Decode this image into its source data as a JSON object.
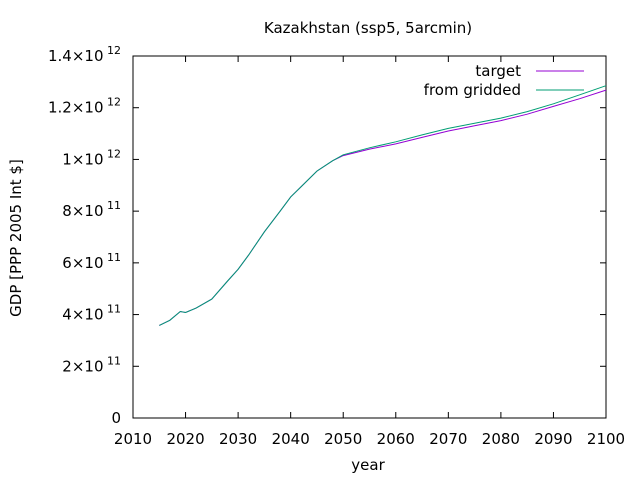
{
  "chart_data": {
    "type": "line",
    "title": "Kazakhstan (ssp5, 5arcmin)",
    "xlabel": "year",
    "ylabel": "GDP [PPP 2005 Int $]",
    "xlim": [
      2010,
      2100
    ],
    "ylim": [
      0,
      1400000000000
    ],
    "x_ticks": [
      2010,
      2020,
      2030,
      2040,
      2050,
      2060,
      2070,
      2080,
      2090,
      2100
    ],
    "y_ticks": [
      {
        "value": 0,
        "mant": "0",
        "exp": ""
      },
      {
        "value": 200000000000,
        "mant": "2×10",
        "exp": "11"
      },
      {
        "value": 400000000000,
        "mant": "4×10",
        "exp": "11"
      },
      {
        "value": 600000000000,
        "mant": "6×10",
        "exp": "11"
      },
      {
        "value": 800000000000,
        "mant": "8×10",
        "exp": "11"
      },
      {
        "value": 1000000000000,
        "mant": "1×10",
        "exp": "12"
      },
      {
        "value": 1200000000000,
        "mant": "1.2×10",
        "exp": "12"
      },
      {
        "value": 1400000000000,
        "mant": "1.4×10",
        "exp": "12"
      }
    ],
    "grid": false,
    "legend_position": "top-right",
    "x": [
      2015,
      2017,
      2019,
      2020,
      2022,
      2025,
      2028,
      2030,
      2032,
      2035,
      2038,
      2040,
      2042,
      2045,
      2048,
      2050,
      2055,
      2060,
      2065,
      2070,
      2075,
      2080,
      2085,
      2090,
      2095,
      2100
    ],
    "series": [
      {
        "name": "target",
        "color": "#9400d3",
        "values": [
          358000000000.0,
          378000000000.0,
          412000000000.0,
          408000000000.0,
          425000000000.0,
          460000000000.0,
          530000000000.0,
          575000000000.0,
          630000000000.0,
          720000000000.0,
          800000000000.0,
          855000000000.0,
          895000000000.0,
          955000000000.0,
          995000000000.0,
          1015000000000.0,
          1040000000000.0,
          1060000000000.0,
          1085000000000.0,
          1110000000000.0,
          1130000000000.0,
          1150000000000.0,
          1175000000000.0,
          1205000000000.0,
          1235000000000.0,
          1268000000000.0
        ]
      },
      {
        "name": "from gridded",
        "color": "#009e73",
        "values": [
          358000000000.0,
          378000000000.0,
          412000000000.0,
          408000000000.0,
          425000000000.0,
          460000000000.0,
          530000000000.0,
          575000000000.0,
          630000000000.0,
          720000000000.0,
          800000000000.0,
          855000000000.0,
          895000000000.0,
          955000000000.0,
          995000000000.0,
          1018000000000.0,
          1045000000000.0,
          1068000000000.0,
          1095000000000.0,
          1120000000000.0,
          1140000000000.0,
          1160000000000.0,
          1185000000000.0,
          1215000000000.0,
          1250000000000.0,
          1285000000000.0
        ]
      }
    ]
  }
}
